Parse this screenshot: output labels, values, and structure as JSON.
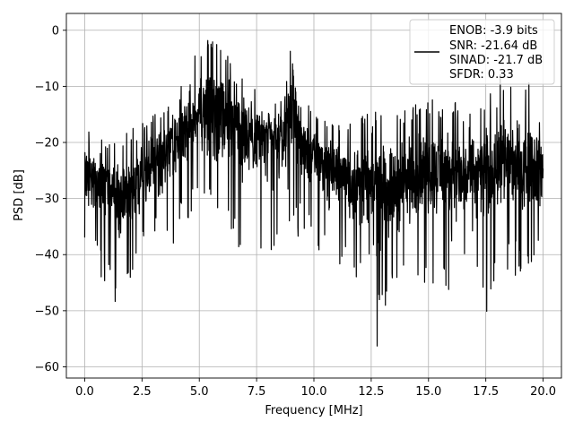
{
  "chart_data": {
    "type": "line",
    "xlabel": "Frequency [MHz]",
    "ylabel": "PSD [dB]",
    "xlim": [
      -0.8,
      20.8
    ],
    "ylim": [
      -62,
      3
    ],
    "grid": true,
    "x_ticks": [
      0.0,
      2.5,
      5.0,
      7.5,
      10.0,
      12.5,
      15.0,
      17.5,
      20.0
    ],
    "x_tick_labels": [
      "0.0",
      "2.5",
      "5.0",
      "7.5",
      "10.0",
      "12.5",
      "15.0",
      "17.5",
      "20.0"
    ],
    "y_ticks": [
      0,
      -10,
      -20,
      -30,
      -40,
      -50,
      -60
    ],
    "y_tick_labels": [
      "0",
      "−10",
      "−20",
      "−30",
      "−40",
      "−50",
      "−60"
    ],
    "legend": {
      "position": "top-right",
      "entries": [
        "ENOB: -3.9 bits",
        "SNR: -21.64 dB",
        "SINAD: -21.7 dB",
        "SFDR: 0.33"
      ]
    },
    "series": [
      {
        "color": "#000000",
        "envelope": {
          "x": [
            0.0,
            0.5,
            1.0,
            1.5,
            2.0,
            2.5,
            3.0,
            3.5,
            4.0,
            4.5,
            5.0,
            5.5,
            6.0,
            6.5,
            7.0,
            7.5,
            8.0,
            8.5,
            9.0,
            9.5,
            10.0,
            10.5,
            11.0,
            11.5,
            12.0,
            12.5,
            13.0,
            13.5,
            14.0,
            14.5,
            15.0,
            15.5,
            16.0,
            16.5,
            17.0,
            17.5,
            18.0,
            18.5,
            19.0,
            19.5,
            20.0
          ],
          "upper": [
            -15,
            -18,
            -19,
            -19,
            -17,
            -16,
            -15,
            -14,
            -12,
            -6,
            -3,
            -1,
            -2,
            -4,
            -7,
            -9,
            -11,
            -12,
            -1,
            -12,
            -14,
            -16,
            -17,
            -16,
            -15,
            -14,
            -15,
            -15,
            -14,
            -13,
            -12,
            -13,
            -12,
            -14,
            -14,
            -12,
            -8,
            -7,
            -10,
            -8,
            -13
          ],
          "lower": [
            -41,
            -43,
            -46,
            -52,
            -45,
            -40,
            -38,
            -40,
            -38,
            -34,
            -32,
            -34,
            -37,
            -40,
            -43,
            -42,
            -40,
            -38,
            -35,
            -38,
            -40,
            -42,
            -44,
            -45,
            -47,
            -59,
            -55,
            -50,
            -46,
            -45,
            -46,
            -44,
            -49,
            -47,
            -46,
            -54,
            -44,
            -45,
            -43,
            -42,
            -45
          ],
          "mean": [
            -24,
            -27,
            -28,
            -29,
            -28,
            -26,
            -24,
            -22,
            -20,
            -17,
            -14,
            -13,
            -14,
            -15,
            -17,
            -18,
            -19,
            -20,
            -12,
            -19,
            -22,
            -24,
            -25,
            -26,
            -27,
            -28,
            -28,
            -27,
            -27,
            -26,
            -25,
            -25,
            -26,
            -26,
            -25,
            -25,
            -23,
            -23,
            -24,
            -24,
            -25
          ]
        }
      }
    ]
  }
}
